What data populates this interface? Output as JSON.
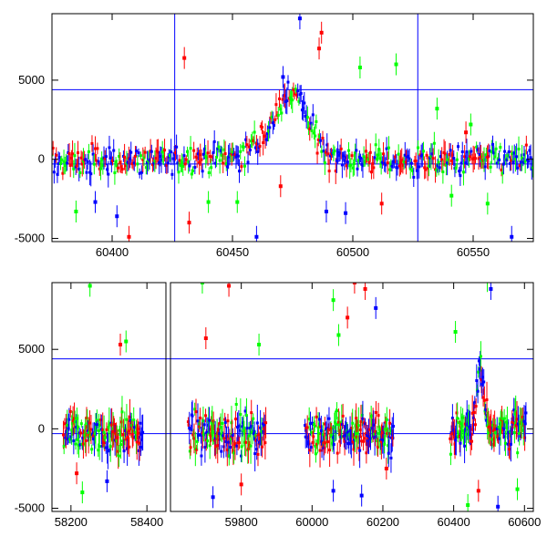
{
  "chart_data": [
    {
      "type": "scatter",
      "panel": "top",
      "x_range": [
        60375,
        60575
      ],
      "y_range": [
        -5200,
        9200
      ],
      "x_ticks": [
        60400,
        60450,
        60500,
        60550
      ],
      "y_ticks": [
        -5000,
        0,
        5000
      ],
      "x_tick_labels": [
        "60400",
        "60450",
        "60500",
        "60550"
      ],
      "y_tick_labels": [
        "-5000",
        "0",
        "5000"
      ],
      "error_bars": true,
      "horizontal_lines": [
        4400,
        -300
      ],
      "vertical_lines": [
        60426,
        60527
      ],
      "series_colors": [
        "#ff0000",
        "#00ff00",
        "#0000ff"
      ],
      "trend": [
        [
          60375,
          -200
        ],
        [
          60425,
          0
        ],
        [
          60455,
          300
        ],
        [
          60465,
          1800
        ],
        [
          60470,
          3600
        ],
        [
          60475,
          4200
        ],
        [
          60478,
          3800
        ],
        [
          60483,
          1800
        ],
        [
          60490,
          400
        ],
        [
          60500,
          0
        ],
        [
          60525,
          -100
        ],
        [
          60575,
          0
        ]
      ],
      "outliers": [
        {
          "x": 60478,
          "y": 8900,
          "c": 2
        },
        {
          "x": 60487,
          "y": 8000,
          "c": 0
        },
        {
          "x": 60486,
          "y": 7000,
          "c": 0
        },
        {
          "x": 60430,
          "y": 6400,
          "c": 0
        },
        {
          "x": 60518,
          "y": 6000,
          "c": 1
        },
        {
          "x": 60503,
          "y": 5800,
          "c": 1
        },
        {
          "x": 60535,
          "y": 3200,
          "c": 1
        },
        {
          "x": 60549,
          "y": 2200,
          "c": 1
        },
        {
          "x": 60471,
          "y": 5200,
          "c": 2
        },
        {
          "x": 60385,
          "y": -3300,
          "c": 1
        },
        {
          "x": 60393,
          "y": -2700,
          "c": 2
        },
        {
          "x": 60407,
          "y": -4900,
          "c": 0
        },
        {
          "x": 60432,
          "y": -4000,
          "c": 0
        },
        {
          "x": 60440,
          "y": -2700,
          "c": 1
        },
        {
          "x": 60460,
          "y": -4900,
          "c": 2
        },
        {
          "x": 60489,
          "y": -3300,
          "c": 2
        },
        {
          "x": 60497,
          "y": -3400,
          "c": 2
        },
        {
          "x": 60512,
          "y": -2800,
          "c": 0
        },
        {
          "x": 60541,
          "y": -2300,
          "c": 1
        },
        {
          "x": 60556,
          "y": -2800,
          "c": 1
        },
        {
          "x": 60566,
          "y": -4900,
          "c": 2
        },
        {
          "x": 60402,
          "y": -3600,
          "c": 2
        },
        {
          "x": 60470,
          "y": -1700,
          "c": 0
        },
        {
          "x": 60452,
          "y": -2700,
          "c": 1
        },
        {
          "x": 60547,
          "y": 1700,
          "c": 0
        }
      ]
    },
    {
      "type": "scatter",
      "panel": "bottom",
      "x_range": [
        58150,
        60625
      ],
      "y_range": [
        -5200,
        9200
      ],
      "x_ticks": [
        58200,
        58400,
        59800,
        60000,
        60200,
        60400,
        60600
      ],
      "y_ticks": [
        -5000,
        0,
        5000
      ],
      "x_tick_labels": [
        "58200",
        "58400",
        "59800",
        "60000",
        "60200",
        "60400",
        "60600"
      ],
      "y_tick_labels": [
        "-5000",
        "0",
        "5000"
      ],
      "error_bars": true,
      "horizontal_lines": [
        4400,
        -300
      ],
      "axis_break_after": 58450,
      "axis_resume_at": 59600,
      "series_colors": [
        "#ff0000",
        "#00ff00",
        "#0000ff"
      ],
      "observing_seasons": [
        [
          58180,
          58390
        ],
        [
          59650,
          59870
        ],
        [
          59980,
          60230
        ],
        [
          60390,
          60605
        ]
      ],
      "trend": [
        [
          60390,
          -300
        ],
        [
          60440,
          200
        ],
        [
          60460,
          800
        ],
        [
          60470,
          3000
        ],
        [
          60475,
          4500
        ],
        [
          60480,
          3500
        ],
        [
          60490,
          1000
        ],
        [
          60510,
          0
        ],
        [
          60605,
          0
        ]
      ],
      "outliers": [
        {
          "x": 58250,
          "y": 9000,
          "c": 1
        },
        {
          "x": 58330,
          "y": 5300,
          "c": 0
        },
        {
          "x": 58345,
          "y": 5500,
          "c": 1
        },
        {
          "x": 58230,
          "y": -4000,
          "c": 1
        },
        {
          "x": 58215,
          "y": -2800,
          "c": 0
        },
        {
          "x": 58295,
          "y": -3300,
          "c": 2
        },
        {
          "x": 59690,
          "y": 9200,
          "c": 1
        },
        {
          "x": 59765,
          "y": 9000,
          "c": 0
        },
        {
          "x": 59700,
          "y": 5700,
          "c": 0
        },
        {
          "x": 59850,
          "y": 5300,
          "c": 1
        },
        {
          "x": 59720,
          "y": -4300,
          "c": 2
        },
        {
          "x": 59800,
          "y": -3500,
          "c": 0
        },
        {
          "x": 60120,
          "y": 9200,
          "c": 0
        },
        {
          "x": 60150,
          "y": 8800,
          "c": 0
        },
        {
          "x": 60060,
          "y": 8100,
          "c": 1
        },
        {
          "x": 60180,
          "y": 7600,
          "c": 2
        },
        {
          "x": 60100,
          "y": 7000,
          "c": 0
        },
        {
          "x": 60075,
          "y": 5900,
          "c": 1
        },
        {
          "x": 60060,
          "y": -3900,
          "c": 2
        },
        {
          "x": 60140,
          "y": -4200,
          "c": 2
        },
        {
          "x": 60210,
          "y": -2500,
          "c": 0
        },
        {
          "x": 60495,
          "y": 9300,
          "c": 1
        },
        {
          "x": 60505,
          "y": 8800,
          "c": 2
        },
        {
          "x": 60405,
          "y": 6100,
          "c": 1
        },
        {
          "x": 60440,
          "y": -4800,
          "c": 1
        },
        {
          "x": 60525,
          "y": -4900,
          "c": 2
        },
        {
          "x": 60470,
          "y": -3900,
          "c": 0
        },
        {
          "x": 60580,
          "y": -3800,
          "c": 1
        }
      ]
    }
  ]
}
